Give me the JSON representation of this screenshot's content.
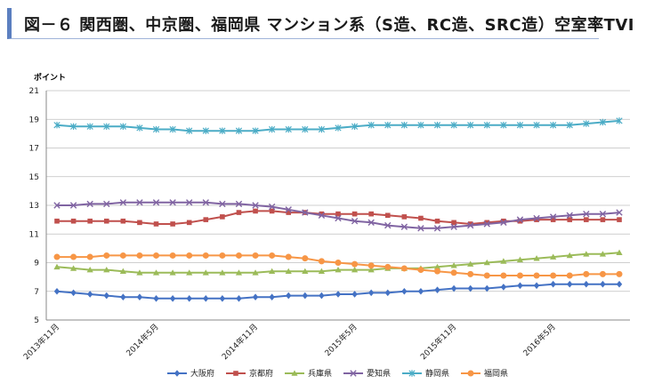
{
  "title": "図－６ 関西圏、中京圏、福岡県 マンション系（S造、RC造、SRC造）空室率TVI",
  "chart_data": {
    "type": "line",
    "ylabel": "ポイント",
    "ylim": [
      5,
      21
    ],
    "yticks": [
      5,
      7,
      9,
      11,
      13,
      15,
      17,
      19,
      21
    ],
    "xticks": [
      "2013年11月",
      "2014年5月",
      "2014年11月",
      "2015年5月",
      "2015年11月",
      "2016年5月"
    ],
    "xtick_indices": [
      0,
      6,
      12,
      18,
      24,
      30
    ],
    "grid": true,
    "legend_position": "bottom",
    "series": [
      {
        "name": "大阪府",
        "color": "#4472c4",
        "marker": "diamond",
        "values": [
          7.0,
          6.9,
          6.8,
          6.7,
          6.6,
          6.6,
          6.5,
          6.5,
          6.5,
          6.5,
          6.5,
          6.5,
          6.6,
          6.6,
          6.7,
          6.7,
          6.7,
          6.8,
          6.8,
          6.9,
          6.9,
          7.0,
          7.0,
          7.1,
          7.2,
          7.2,
          7.2,
          7.3,
          7.4,
          7.4,
          7.5,
          7.5,
          7.5,
          7.5,
          7.5
        ]
      },
      {
        "name": "京都府",
        "color": "#c0504d",
        "marker": "square",
        "values": [
          11.9,
          11.9,
          11.9,
          11.9,
          11.9,
          11.8,
          11.7,
          11.7,
          11.8,
          12.0,
          12.2,
          12.5,
          12.6,
          12.6,
          12.5,
          12.5,
          12.4,
          12.4,
          12.4,
          12.4,
          12.3,
          12.2,
          12.1,
          11.9,
          11.8,
          11.7,
          11.8,
          11.9,
          11.9,
          12.0,
          12.0,
          12.0,
          12.0,
          12.0,
          12.0
        ]
      },
      {
        "name": "兵庫県",
        "color": "#9bbb59",
        "marker": "triangle",
        "values": [
          8.7,
          8.6,
          8.5,
          8.5,
          8.4,
          8.3,
          8.3,
          8.3,
          8.3,
          8.3,
          8.3,
          8.3,
          8.3,
          8.4,
          8.4,
          8.4,
          8.4,
          8.5,
          8.5,
          8.5,
          8.6,
          8.6,
          8.6,
          8.7,
          8.8,
          8.9,
          9.0,
          9.1,
          9.2,
          9.3,
          9.4,
          9.5,
          9.6,
          9.6,
          9.7
        ]
      },
      {
        "name": "愛知県",
        "color": "#8064a2",
        "marker": "x",
        "values": [
          13.0,
          13.0,
          13.1,
          13.1,
          13.2,
          13.2,
          13.2,
          13.2,
          13.2,
          13.2,
          13.1,
          13.1,
          13.0,
          12.9,
          12.7,
          12.5,
          12.3,
          12.1,
          11.9,
          11.8,
          11.6,
          11.5,
          11.4,
          11.4,
          11.5,
          11.6,
          11.7,
          11.8,
          12.0,
          12.1,
          12.2,
          12.3,
          12.4,
          12.4,
          12.5
        ]
      },
      {
        "name": "静岡県",
        "color": "#4bacc6",
        "marker": "star",
        "values": [
          18.6,
          18.5,
          18.5,
          18.5,
          18.5,
          18.4,
          18.3,
          18.3,
          18.2,
          18.2,
          18.2,
          18.2,
          18.2,
          18.3,
          18.3,
          18.3,
          18.3,
          18.4,
          18.5,
          18.6,
          18.6,
          18.6,
          18.6,
          18.6,
          18.6,
          18.6,
          18.6,
          18.6,
          18.6,
          18.6,
          18.6,
          18.6,
          18.7,
          18.8,
          18.9
        ]
      },
      {
        "name": "福岡県",
        "color": "#f79646",
        "marker": "circle",
        "values": [
          9.4,
          9.4,
          9.4,
          9.5,
          9.5,
          9.5,
          9.5,
          9.5,
          9.5,
          9.5,
          9.5,
          9.5,
          9.5,
          9.5,
          9.4,
          9.3,
          9.1,
          9.0,
          8.9,
          8.8,
          8.7,
          8.6,
          8.5,
          8.4,
          8.3,
          8.2,
          8.1,
          8.1,
          8.1,
          8.1,
          8.1,
          8.1,
          8.2,
          8.2,
          8.2
        ]
      }
    ]
  }
}
